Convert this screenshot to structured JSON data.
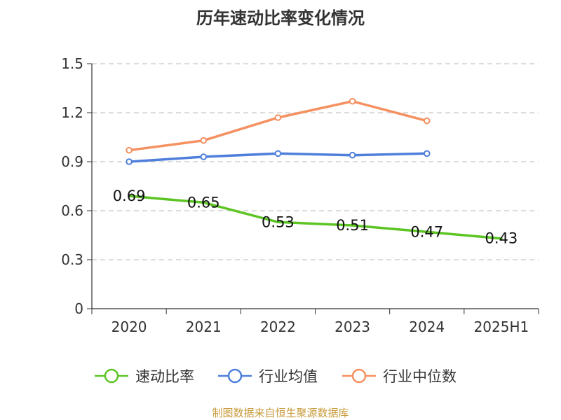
{
  "title": "历年速动比率变化情况",
  "footer": "制图数据来自恒生聚源数据库",
  "chart_data": {
    "type": "line",
    "title": "历年速动比率变化情况",
    "categories": [
      "2020",
      "2021",
      "2022",
      "2023",
      "2024",
      "2025H1"
    ],
    "yticks": [
      "0",
      "0.3",
      "0.6",
      "0.9",
      "1.2",
      "1.5"
    ],
    "ylim": [
      0,
      1.5
    ],
    "grid": true,
    "legend_position": "bottom",
    "series": [
      {
        "name": "速动比率",
        "color": "#5cc423",
        "values": [
          0.69,
          0.65,
          0.53,
          0.51,
          0.47,
          0.43
        ],
        "labels": [
          "0.69",
          "0.65",
          "0.53",
          "0.51",
          "0.47",
          "0.43"
        ],
        "markers": false
      },
      {
        "name": "行业均值",
        "color": "#4f7fdb",
        "values": [
          0.9,
          0.93,
          0.95,
          0.94,
          0.95,
          null
        ],
        "markers": true
      },
      {
        "name": "行业中位数",
        "color": "#f59060",
        "values": [
          0.97,
          1.03,
          1.17,
          1.27,
          1.15,
          null
        ],
        "markers": true
      }
    ]
  }
}
